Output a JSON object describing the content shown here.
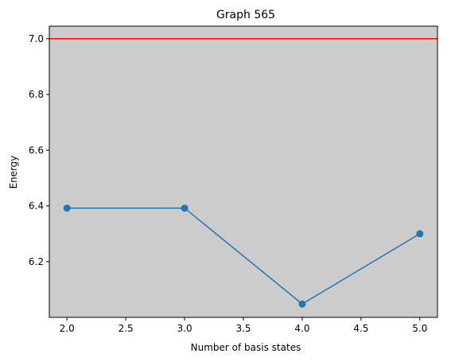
{
  "chart_data": {
    "type": "line",
    "title": "Graph 565",
    "xlabel": "Number of basis states",
    "ylabel": "Energy",
    "x": [
      2.0,
      3.0,
      4.0,
      5.0
    ],
    "series": [
      {
        "values": [
          6.392,
          6.392,
          6.048,
          6.3
        ],
        "color": "#1f77b4",
        "marker": "circle"
      }
    ],
    "reference_line": {
      "y": 7.0,
      "color": "#ff0000"
    },
    "xlim": [
      1.85,
      5.15
    ],
    "ylim": [
      6.0,
      7.045
    ],
    "xticks": [
      "2.0",
      "2.5",
      "3.0",
      "3.5",
      "4.0",
      "4.5",
      "5.0"
    ],
    "yticks": [
      "6.2",
      "6.4",
      "6.6",
      "6.8",
      "7.0"
    ],
    "background_color": "#cccccc",
    "grid": false,
    "legend": false
  }
}
